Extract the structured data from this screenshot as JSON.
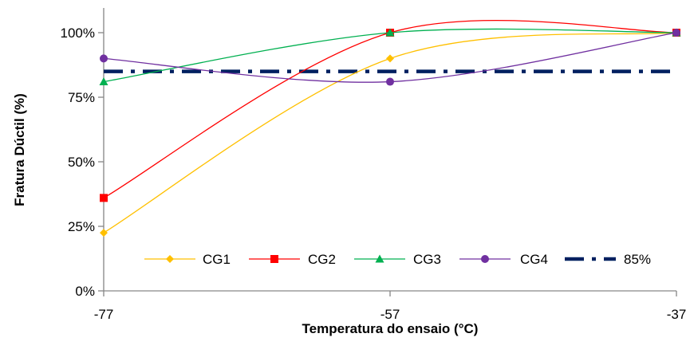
{
  "chart_data": {
    "type": "line",
    "xlabel": "Temperatura do ensaio (°C)",
    "ylabel": "Fratura Dúctil (%)",
    "x": [
      -77,
      -57,
      -37
    ],
    "x_tick_labels": [
      "-77",
      "-57",
      "-37"
    ],
    "ylim": [
      0,
      100
    ],
    "y_ticks": [
      0,
      25,
      50,
      75,
      100
    ],
    "y_tick_labels": [
      "0%",
      "25%",
      "50%",
      "75%",
      "100%"
    ],
    "grid": false,
    "smoothed": true,
    "legend_position": "bottom-right, inside plot area",
    "series": [
      {
        "name": "CG1",
        "values": [
          22.5,
          90,
          100
        ],
        "color": "#FFC000",
        "marker": "diamond",
        "line": "solid"
      },
      {
        "name": "CG2",
        "values": [
          36,
          100,
          100
        ],
        "color": "#FF0000",
        "marker": "square",
        "line": "solid"
      },
      {
        "name": "CG3",
        "values": [
          81,
          100,
          100
        ],
        "color": "#00B050",
        "marker": "triangle",
        "line": "solid"
      },
      {
        "name": "CG4",
        "values": [
          90,
          81,
          100
        ],
        "color": "#7030A0",
        "marker": "circle",
        "line": "solid"
      },
      {
        "name": "85%",
        "values": [
          85,
          85,
          85
        ],
        "color": "#002060",
        "marker": "none",
        "line": "dash-dot"
      }
    ]
  }
}
